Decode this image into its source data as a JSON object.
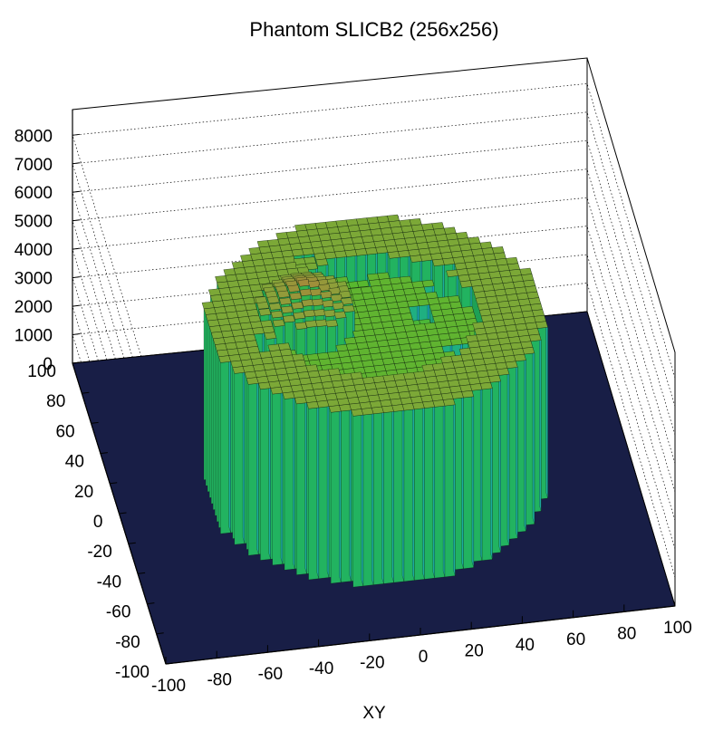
{
  "chart_data": {
    "type": "surface3d",
    "title": "Phantom  SLICB2  (256x256)",
    "xlabel": "XY",
    "ylabel": "",
    "zlabel": "",
    "grid": true,
    "bins": [
      256,
      256
    ],
    "x_range": [
      -100,
      100
    ],
    "y_range": [
      -100,
      100
    ],
    "z_range": [
      0,
      8900
    ],
    "x_ticks": [
      -100,
      -80,
      -60,
      -40,
      -20,
      0,
      20,
      40,
      60,
      80,
      100
    ],
    "y_ticks": [
      -100,
      -80,
      -60,
      -40,
      -20,
      0,
      20,
      40,
      60,
      80,
      100
    ],
    "z_ticks": [
      0,
      1000,
      2000,
      3000,
      4000,
      5000,
      6000,
      7000,
      8000
    ],
    "colormap": [
      "#0a0a6e",
      "#1d5ec8",
      "#19a6c8",
      "#23b45a",
      "#57b82e",
      "#8aa23a",
      "#c86a3a",
      "#d8502a"
    ],
    "floor_color": "#181e46",
    "surface": {
      "shape": "disk",
      "outer_radius": 65,
      "base_level": 6000,
      "inner_ring_radius": 40,
      "inner_ring_level": 5300,
      "hot_spot_center": [
        -25,
        10
      ],
      "hot_spot_level": 6900,
      "rods": [
        {
          "x": -20,
          "y": 40,
          "peak": 5900
        },
        {
          "x": 0,
          "y": 35,
          "peak": 5100
        },
        {
          "x": 30,
          "y": 25,
          "peak": 4700
        },
        {
          "x": 20,
          "y": 10,
          "peak": 4800
        },
        {
          "x": 30,
          "y": -15,
          "peak": 4200
        },
        {
          "x": -45,
          "y": -10,
          "peak": 4000
        }
      ]
    }
  }
}
